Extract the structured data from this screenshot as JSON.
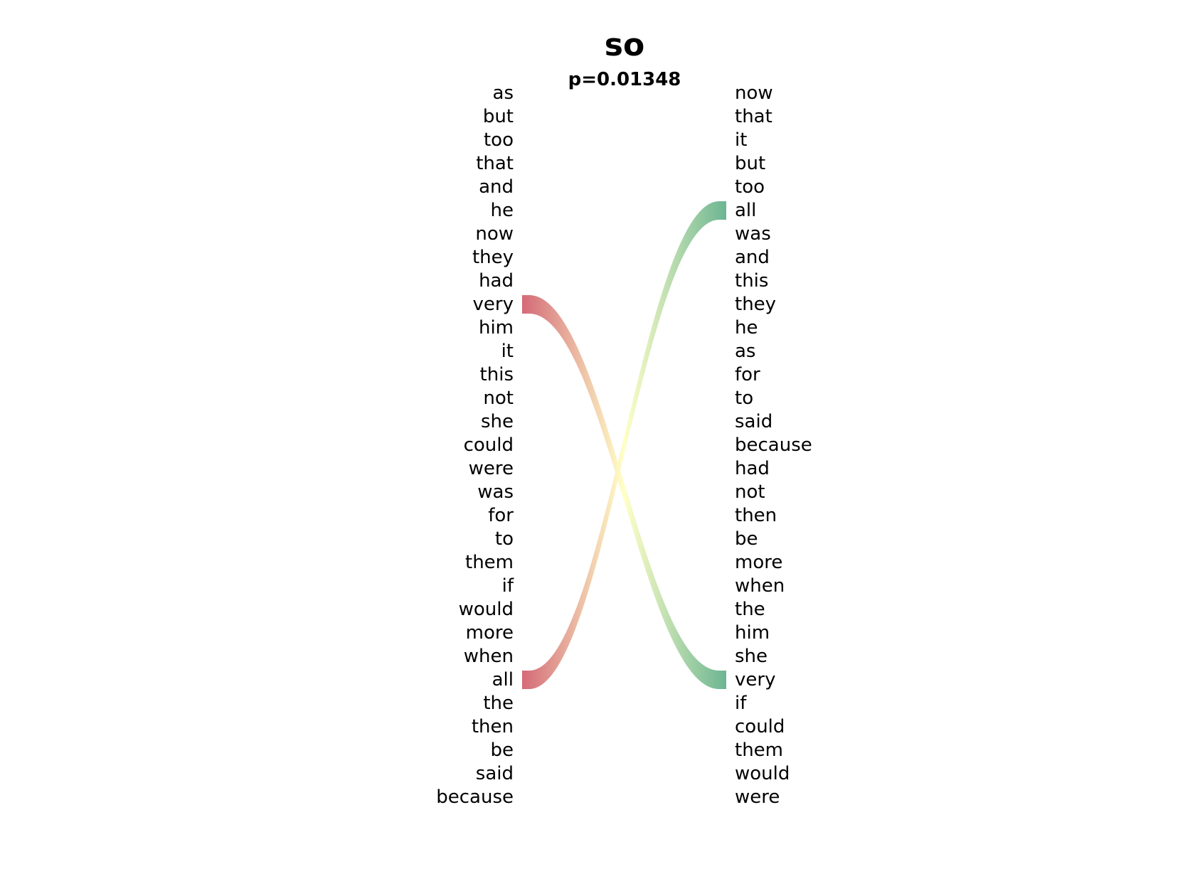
{
  "chart_data": {
    "type": "slope",
    "title": "so",
    "subtitle": "p=0.01348",
    "left_words": [
      "as",
      "but",
      "too",
      "that",
      "and",
      "he",
      "now",
      "they",
      "had",
      "very",
      "him",
      "it",
      "this",
      "not",
      "she",
      "could",
      "were",
      "was",
      "for",
      "to",
      "them",
      "if",
      "would",
      "more",
      "when",
      "all",
      "the",
      "then",
      "be",
      "said",
      "because"
    ],
    "right_words": [
      "now",
      "that",
      "it",
      "but",
      "too",
      "all",
      "was",
      "and",
      "this",
      "they",
      "he",
      "as",
      "for",
      "to",
      "said",
      "because",
      "had",
      "not",
      "then",
      "be",
      "more",
      "when",
      "the",
      "him",
      "she",
      "very",
      "if",
      "could",
      "them",
      "would",
      "were"
    ],
    "links": [
      {
        "from": "very",
        "to": "very",
        "from_rank": 10,
        "to_rank": 26,
        "start_color": "#d46a78",
        "end_color": "#6cb592"
      },
      {
        "from": "all",
        "to": "all",
        "from_rank": 26,
        "to_rank": 6,
        "start_color": "#d46a78",
        "end_color": "#6cb592"
      }
    ],
    "middle_color": "#ffffc8",
    "grid": false,
    "legend": "none"
  }
}
